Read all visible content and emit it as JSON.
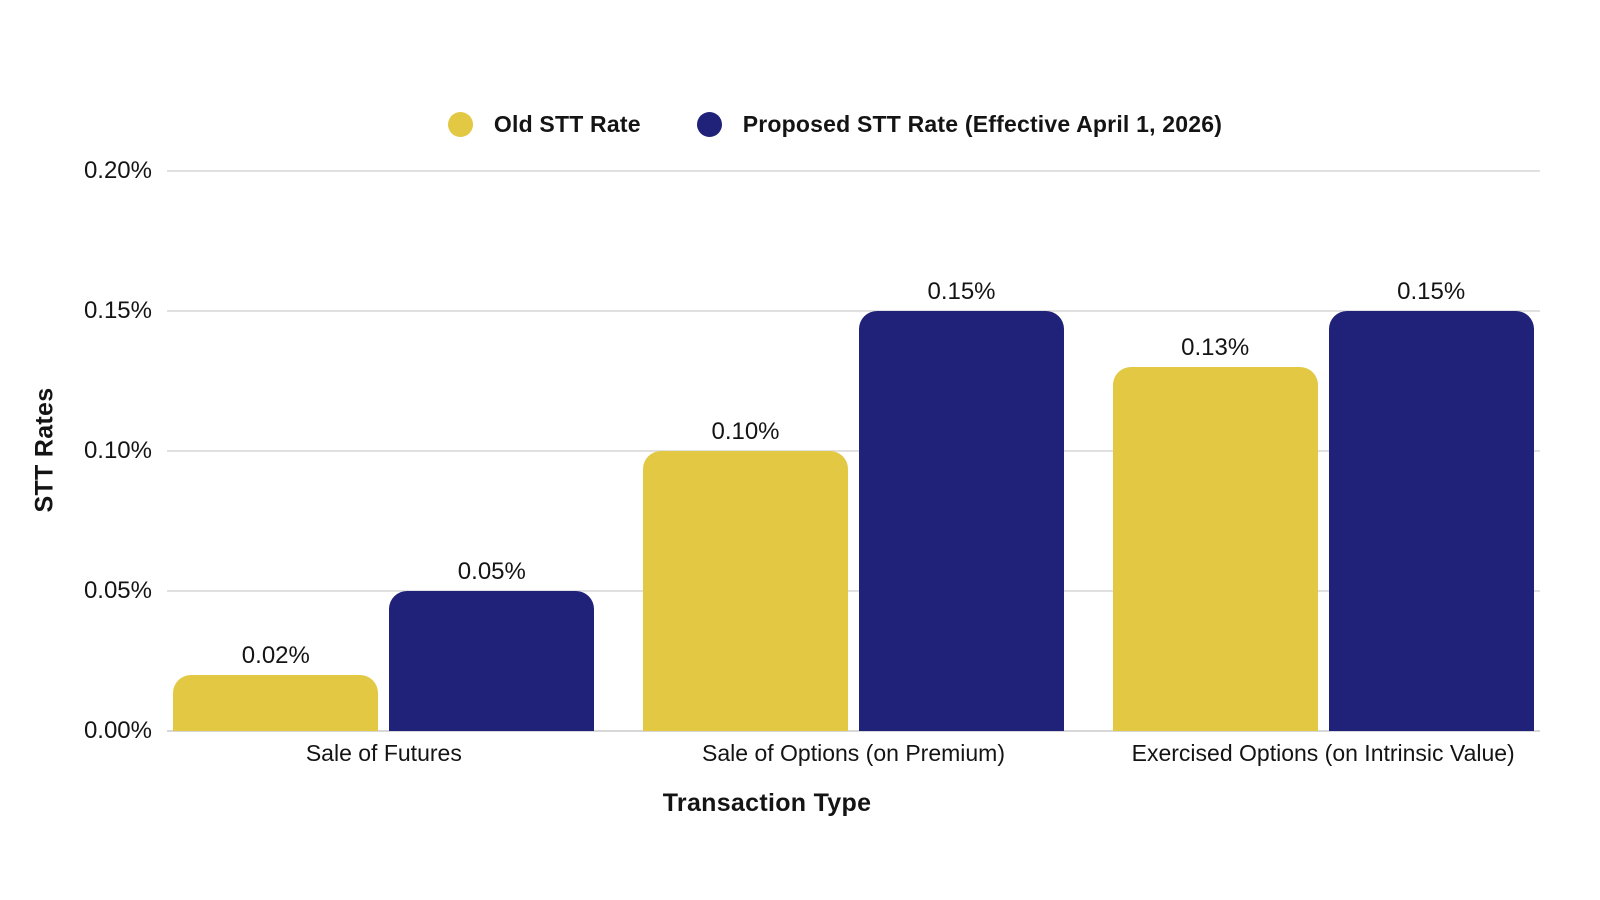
{
  "chart_data": {
    "type": "bar",
    "categories": [
      "Sale of Futures",
      "Sale of Options (on Premium)",
      "Exercised Options (on Intrinsic Value)"
    ],
    "series": [
      {
        "name": "Old STT Rate",
        "color": "#E2C843",
        "values": [
          0.02,
          0.1,
          0.13
        ],
        "value_labels": [
          "0.02%",
          "0.10%",
          "0.13%"
        ]
      },
      {
        "name": "Proposed STT Rate (Effective April 1, 2026)",
        "color": "#1F2278",
        "values": [
          0.05,
          0.15,
          0.15
        ],
        "value_labels": [
          "0.05%",
          "0.15%",
          "0.15%"
        ]
      }
    ],
    "xlabel": "Transaction Type",
    "ylabel": "STT Rates",
    "ylim": [
      0,
      0.2
    ],
    "yticks": [
      {
        "value": 0.0,
        "label": "0.00%"
      },
      {
        "value": 0.05,
        "label": "0.05%"
      },
      {
        "value": 0.1,
        "label": "0.10%"
      },
      {
        "value": 0.15,
        "label": "0.15%"
      },
      {
        "value": 0.2,
        "label": "0.20%"
      }
    ],
    "grid": "horizontal",
    "legend_position": "top",
    "background_color": "#ffffff",
    "gridline_color": "#e0e0e0",
    "text_color": "#141414"
  }
}
